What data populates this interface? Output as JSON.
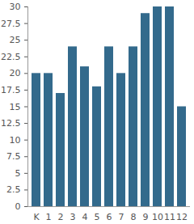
{
  "chart_data": {
    "type": "bar",
    "categories": [
      "K",
      "1",
      "2",
      "3",
      "4",
      "5",
      "6",
      "7",
      "8",
      "9",
      "10",
      "11",
      "12"
    ],
    "values": [
      20,
      20,
      17,
      24,
      21,
      18,
      24,
      20,
      24,
      29,
      30,
      30,
      15
    ],
    "color": "#336a8c",
    "ylim": [
      0,
      30
    ],
    "yticks": [
      0,
      2.5,
      5,
      7.5,
      10,
      12.5,
      15,
      17.5,
      20,
      22.5,
      25,
      27.5,
      30
    ],
    "grid": false
  }
}
